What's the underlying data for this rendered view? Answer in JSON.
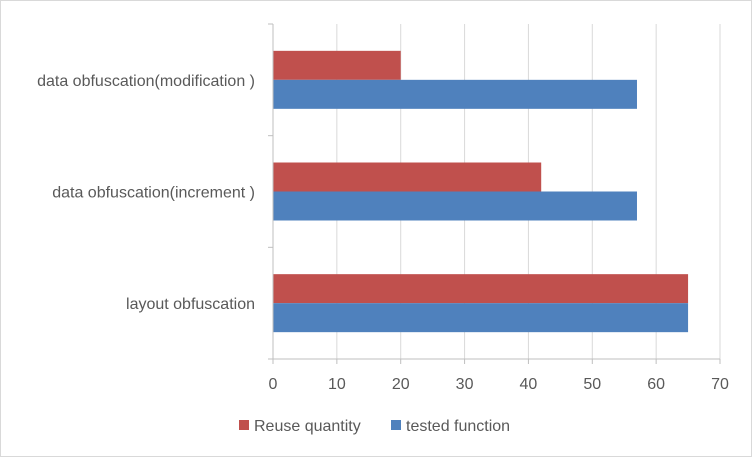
{
  "chart_data": {
    "type": "bar",
    "orientation": "horizontal",
    "categories": [
      "data obfuscation(modification )",
      "data obfuscation(increment )",
      "layout obfuscation"
    ],
    "series": [
      {
        "name": "Reuse quantity",
        "values": [
          20,
          42,
          65
        ],
        "color": "#c0504d"
      },
      {
        "name": "tested function",
        "values": [
          57,
          57,
          65
        ],
        "color": "#4f81bd"
      }
    ],
    "xlim": [
      0,
      70
    ],
    "xticks": [
      0,
      10,
      20,
      30,
      40,
      50,
      60,
      70
    ],
    "grid": true,
    "legend_position": "bottom",
    "title": "",
    "xlabel": "",
    "ylabel": ""
  }
}
